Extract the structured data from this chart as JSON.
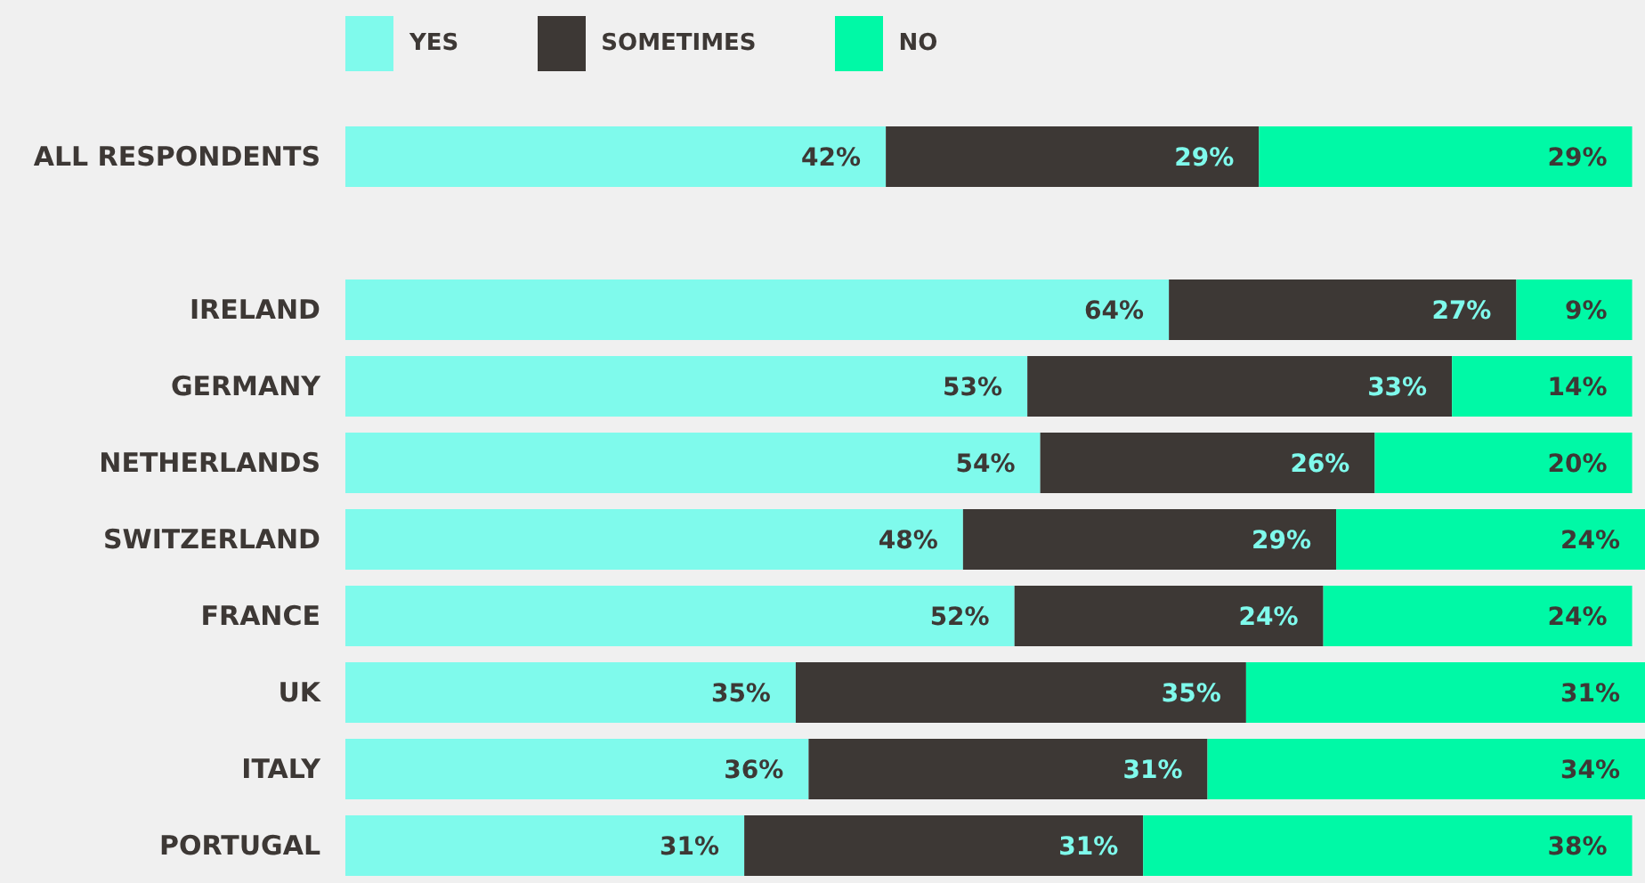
{
  "chart_data": {
    "type": "bar",
    "orientation": "horizontal",
    "stacked": true,
    "categories": [
      "ALL RESPONDENTS",
      null,
      "IRELAND",
      "GERMANY",
      "NETHERLANDS",
      "SWITZERLAND",
      "FRANCE",
      "UK",
      "ITALY",
      "PORTUGAL"
    ],
    "series": [
      {
        "name": "YES",
        "color": "#7ffaec",
        "values": [
          42,
          null,
          64,
          53,
          54,
          48,
          52,
          35,
          36,
          31
        ],
        "value_labels": [
          "42%",
          null,
          "64%",
          "53%",
          "54%",
          "48%",
          "52%",
          "35%",
          "36%",
          "31%"
        ]
      },
      {
        "name": "SOMETIMES",
        "color": "#3d3835",
        "values": [
          29,
          null,
          27,
          33,
          26,
          29,
          24,
          35,
          31,
          31
        ],
        "value_labels": [
          "29%",
          null,
          "27%",
          "33%",
          "26%",
          "29%",
          "24%",
          "35%",
          "31%",
          "31%"
        ]
      },
      {
        "name": "NO",
        "color": "#00f9a6",
        "values": [
          29,
          null,
          9,
          14,
          20,
          24,
          24,
          31,
          34,
          38
        ],
        "value_labels": [
          "29%",
          null,
          "9%",
          "14%",
          "20%",
          "24%",
          "24%",
          "31%",
          "34%",
          "38%"
        ]
      }
    ],
    "xlim": [
      0,
      101
    ],
    "tick_labels": "y",
    "legend": "top left",
    "grid": false
  }
}
